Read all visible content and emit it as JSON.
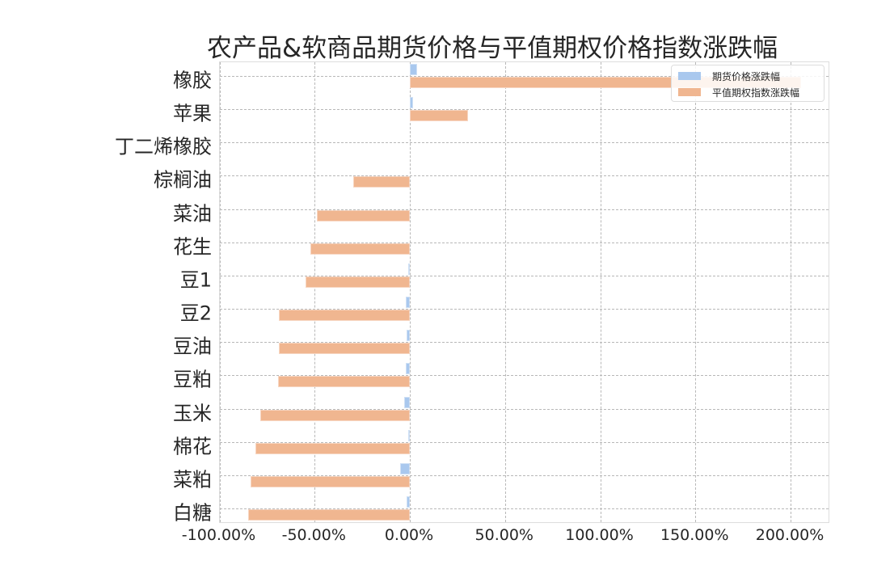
{
  "chart_data": {
    "type": "bar",
    "orientation": "horizontal",
    "title": "农产品&软商品期货价格与平值期权价格指数涨跌幅",
    "xlabel": "",
    "ylabel": "",
    "xlim": [
      -100,
      220
    ],
    "x_ticks": [
      "-100.00%",
      "-50.00%",
      "0.00%",
      "50.00%",
      "100.00%",
      "150.00%",
      "200.00%"
    ],
    "x_tick_values": [
      -100,
      -50,
      0,
      50,
      100,
      150,
      200
    ],
    "grid": true,
    "legend_position": "upper right",
    "categories": [
      "橡胶",
      "苹果",
      "丁二烯橡胶",
      "棕榈油",
      "菜油",
      "花生",
      "豆1",
      "豆2",
      "豆油",
      "豆粕",
      "玉米",
      "棉花",
      "菜粕",
      "白糖"
    ],
    "series": [
      {
        "name": "期货价格涨跌幅",
        "color": "#a9c8ee",
        "values": [
          3.8,
          1.5,
          0.0,
          0.0,
          0.0,
          0.0,
          -0.5,
          -2.3,
          -1.8,
          -2.3,
          -3.0,
          -0.5,
          -5.0,
          -1.8
        ]
      },
      {
        "name": "平值期权指数涨跌幅",
        "color": "#f0b690",
        "values": [
          205.5,
          30.6,
          0.0,
          -29.7,
          -48.8,
          -52.2,
          -54.8,
          -68.8,
          -69.0,
          -69.3,
          -78.6,
          -81.0,
          -83.7,
          -85.0
        ]
      }
    ]
  }
}
